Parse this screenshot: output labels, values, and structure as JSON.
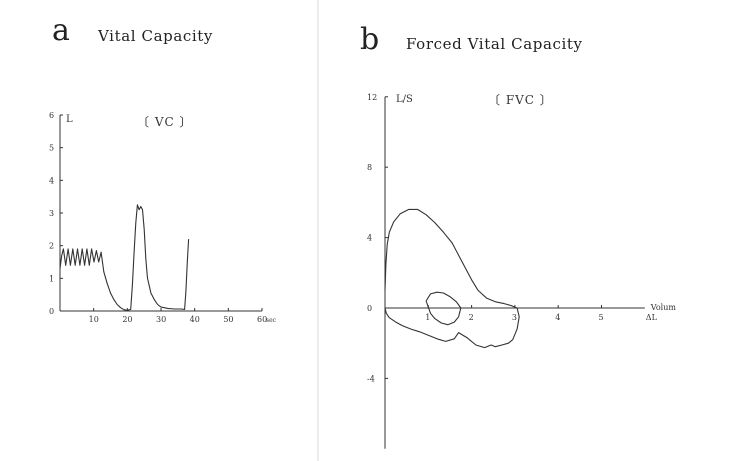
{
  "panels": {
    "a": {
      "letter": "a",
      "title": "Vital  Capacity",
      "inset": "〔 VC 〕"
    },
    "b": {
      "letter": "b",
      "title": "Forced Vital Capacity",
      "inset": "〔 FVC 〕"
    }
  },
  "chart_data": [
    {
      "id": "vc",
      "type": "line",
      "title": "Vital  Capacity",
      "ylabel": "L",
      "xunit": "sec",
      "xlim": [
        0,
        60
      ],
      "ylim": [
        0,
        6
      ],
      "x_ticks": [
        "10",
        "20",
        "30",
        "40",
        "50",
        "60"
      ],
      "y_ticks": [
        "0",
        "1",
        "2",
        "3",
        "4",
        "5",
        "6"
      ],
      "grid": false,
      "series": [
        {
          "x": [
            0,
            0.5,
            1,
            1.7,
            2.4,
            3.1,
            3.8,
            4.5,
            5.2,
            5.9,
            6.6,
            7.3,
            8.0,
            8.7,
            9.4,
            10.1,
            10.8,
            11.5,
            12.2,
            13,
            14,
            15,
            16,
            17,
            18,
            19,
            20,
            21,
            21.5,
            22,
            22.5,
            23,
            23.5,
            24,
            24.5,
            25,
            25.5,
            26,
            27,
            28,
            29,
            30,
            31,
            32,
            34,
            36,
            37,
            37.4,
            37.8,
            38.2
          ],
          "y": [
            1.3,
            1.7,
            1.9,
            1.4,
            1.9,
            1.4,
            1.9,
            1.4,
            1.9,
            1.4,
            1.9,
            1.4,
            1.9,
            1.4,
            1.9,
            1.5,
            1.85,
            1.5,
            1.8,
            1.2,
            0.85,
            0.55,
            0.35,
            0.2,
            0.1,
            0.04,
            0.02,
            0.05,
            0.8,
            1.8,
            2.7,
            3.25,
            3.1,
            3.2,
            3.1,
            2.5,
            1.6,
            1.0,
            0.55,
            0.35,
            0.2,
            0.12,
            0.1,
            0.08,
            0.06,
            0.06,
            0.05,
            0.6,
            1.5,
            2.2
          ]
        }
      ]
    },
    {
      "id": "fvc",
      "type": "line",
      "title": "Forced Vital Capacity",
      "ylabel": "L/S",
      "xlabel": "Volum",
      "xunit": "ΔL",
      "xlim": [
        0,
        6
      ],
      "ylim": [
        -8,
        12
      ],
      "x_ticks": [
        "1",
        "2",
        "3",
        "4",
        "5"
      ],
      "y_ticks": [
        "12",
        "8",
        "4",
        "0",
        "-4"
      ],
      "grid": false,
      "series": [
        {
          "x": [
            0,
            0.02,
            0.05,
            0.1,
            0.2,
            0.35,
            0.55,
            0.75,
            0.95,
            1.15,
            1.35,
            1.55,
            1.7,
            1.85,
            2.0,
            2.15,
            2.35,
            2.55,
            2.75,
            2.9,
            3.0,
            3.05,
            3.1,
            3.05,
            2.95,
            2.85,
            2.7,
            2.55,
            2.45,
            2.3,
            2.1,
            1.9,
            1.7,
            1.6,
            1.4,
            1.2,
            1.0,
            0.8,
            0.6,
            0.4,
            0.25,
            0.1,
            0.03,
            0
          ],
          "y": [
            1.0,
            2.5,
            3.6,
            4.3,
            4.9,
            5.35,
            5.6,
            5.6,
            5.3,
            4.85,
            4.3,
            3.7,
            3.0,
            2.3,
            1.6,
            1.0,
            0.55,
            0.35,
            0.25,
            0.15,
            0.05,
            0,
            -0.5,
            -1.2,
            -1.8,
            -2.0,
            -2.1,
            -2.2,
            -2.1,
            -2.25,
            -2.1,
            -1.7,
            -1.4,
            -1.75,
            -1.9,
            -1.75,
            -1.55,
            -1.35,
            -1.2,
            -1.0,
            -0.8,
            -0.55,
            -0.3,
            0
          ]
        },
        {
          "x": [
            0.95,
            1.05,
            1.2,
            1.35,
            1.5,
            1.65,
            1.75,
            1.7,
            1.6,
            1.45,
            1.3,
            1.15,
            1.05,
            0.95
          ],
          "y": [
            0.4,
            0.8,
            0.9,
            0.85,
            0.65,
            0.35,
            0.0,
            -0.5,
            -0.8,
            -0.95,
            -0.85,
            -0.6,
            -0.3,
            0.4
          ]
        }
      ]
    }
  ]
}
